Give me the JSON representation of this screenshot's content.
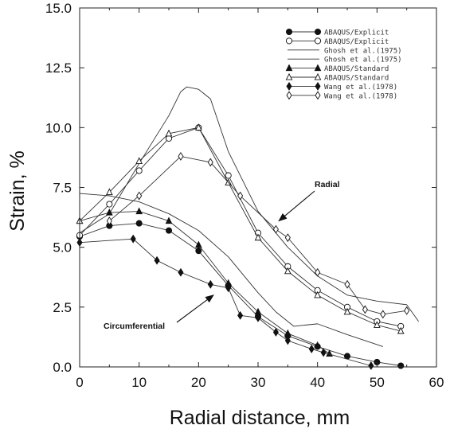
{
  "chart_data": {
    "type": "line",
    "xlabel": "Radial distance, mm",
    "ylabel": "Strain, %",
    "xlim": [
      0,
      60
    ],
    "ylim": [
      0,
      15
    ],
    "xticks": [
      0,
      10,
      20,
      30,
      40,
      50,
      60
    ],
    "yticks": [
      "0.0",
      "2.5",
      "5.0",
      "7.5",
      "10.0",
      "12.5",
      "15.0"
    ],
    "grid": false,
    "legend_position": "top-right",
    "legend": [
      {
        "label": "ABAQUS/Explicit",
        "marker": "filled-circle"
      },
      {
        "label": "ABAQUS/Explicit",
        "marker": "open-circle"
      },
      {
        "label": "Ghosh et al.(1975)",
        "marker": "none"
      },
      {
        "label": "Ghosh et al.(1975)",
        "marker": "none"
      },
      {
        "label": "ABAQUS/Standard",
        "marker": "filled-triangle"
      },
      {
        "label": "ABAQUS/Standard",
        "marker": "open-triangle"
      },
      {
        "label": "Wang et al.(1978)",
        "marker": "filled-diamond"
      },
      {
        "label": "Wang et al.(1978)",
        "marker": "open-diamond"
      }
    ],
    "annotations": [
      {
        "text": "Radial",
        "x": 43,
        "y": 7.3,
        "arrow_to": [
          33.5,
          6.1
        ]
      },
      {
        "text": "Circumferential",
        "x": 14,
        "y": 1.6,
        "arrow_to": [
          22.5,
          3.0
        ]
      }
    ],
    "series": [
      {
        "label": "ABAQUS/Explicit",
        "marker": "filled-circle",
        "points": [
          [
            0,
            5.45
          ],
          [
            5,
            5.9
          ],
          [
            10,
            6.0
          ],
          [
            15,
            5.7
          ],
          [
            20,
            4.85
          ],
          [
            25,
            3.4
          ],
          [
            30,
            2.1
          ],
          [
            35,
            1.3
          ],
          [
            40,
            0.85
          ],
          [
            45,
            0.45
          ],
          [
            50,
            0.2
          ],
          [
            54,
            0.05
          ]
        ]
      },
      {
        "label": "ABAQUS/Explicit",
        "marker": "open-circle",
        "points": [
          [
            0,
            5.5
          ],
          [
            5,
            6.8
          ],
          [
            10,
            8.2
          ],
          [
            15,
            9.55
          ],
          [
            20,
            10.0
          ],
          [
            25,
            8.0
          ],
          [
            30,
            5.6
          ],
          [
            35,
            4.2
          ],
          [
            40,
            3.2
          ],
          [
            45,
            2.5
          ],
          [
            50,
            1.9
          ],
          [
            54,
            1.7
          ]
        ]
      },
      {
        "label": "Ghosh et al.(1975)",
        "marker": "none",
        "points": [
          [
            0,
            7.25
          ],
          [
            5,
            7.15
          ],
          [
            10,
            6.9
          ],
          [
            15,
            6.4
          ],
          [
            20,
            5.7
          ],
          [
            25,
            4.6
          ],
          [
            30,
            3.1
          ],
          [
            33,
            2.3
          ],
          [
            36,
            1.7
          ],
          [
            38,
            1.75
          ],
          [
            40,
            1.8
          ],
          [
            45,
            1.35
          ],
          [
            51,
            0.85
          ]
        ]
      },
      {
        "label": "Ghosh et al.(1975)",
        "marker": "none",
        "points": [
          [
            0,
            5.6
          ],
          [
            5,
            6.4
          ],
          [
            10,
            8.5
          ],
          [
            15,
            10.5
          ],
          [
            17,
            11.5
          ],
          [
            18,
            11.7
          ],
          [
            20,
            11.6
          ],
          [
            22,
            11.2
          ],
          [
            25,
            9.0
          ],
          [
            30,
            6.5
          ],
          [
            35,
            5.0
          ],
          [
            40,
            3.8
          ],
          [
            45,
            3.0
          ],
          [
            50,
            2.75
          ],
          [
            55,
            2.6
          ],
          [
            57,
            1.9
          ]
        ]
      },
      {
        "label": "ABAQUS/Standard",
        "marker": "filled-triangle",
        "points": [
          [
            0,
            6.1
          ],
          [
            5,
            6.45
          ],
          [
            10,
            6.5
          ],
          [
            15,
            6.1
          ],
          [
            20,
            5.1
          ],
          [
            25,
            3.5
          ],
          [
            30,
            2.3
          ],
          [
            35,
            1.4
          ],
          [
            40,
            0.9
          ],
          [
            42,
            0.55
          ]
        ]
      },
      {
        "label": "ABAQUS/Standard",
        "marker": "open-triangle",
        "points": [
          [
            0,
            6.1
          ],
          [
            5,
            7.3
          ],
          [
            10,
            8.6
          ],
          [
            15,
            9.75
          ],
          [
            20,
            10.0
          ],
          [
            25,
            7.7
          ],
          [
            30,
            5.4
          ],
          [
            35,
            4.0
          ],
          [
            40,
            3.0
          ],
          [
            45,
            2.3
          ],
          [
            50,
            1.75
          ],
          [
            54,
            1.5
          ]
        ]
      },
      {
        "label": "Wang et al.(1978)",
        "marker": "filled-diamond",
        "points": [
          [
            0,
            5.2
          ],
          [
            9,
            5.35
          ],
          [
            13,
            4.45
          ],
          [
            17,
            3.95
          ],
          [
            22,
            3.45
          ],
          [
            25,
            3.3
          ],
          [
            27,
            2.15
          ],
          [
            30,
            2.05
          ],
          [
            33,
            1.45
          ],
          [
            35,
            1.1
          ],
          [
            39,
            0.75
          ],
          [
            41,
            0.6
          ],
          [
            49,
            0.05
          ]
        ]
      },
      {
        "label": "Wang et al.(1978)",
        "marker": "open-diamond",
        "points": [
          [
            5,
            6.1
          ],
          [
            10,
            7.15
          ],
          [
            17,
            8.8
          ],
          [
            22,
            8.55
          ],
          [
            27,
            7.15
          ],
          [
            33,
            5.75
          ],
          [
            35,
            5.4
          ],
          [
            40,
            3.95
          ],
          [
            45,
            3.45
          ],
          [
            48,
            2.4
          ],
          [
            51,
            2.2
          ],
          [
            55,
            2.35
          ]
        ]
      }
    ]
  }
}
